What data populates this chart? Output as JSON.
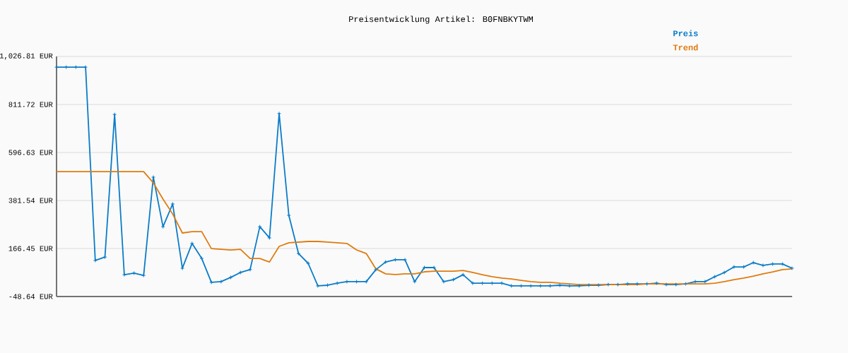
{
  "chart_data": {
    "type": "line",
    "title": "Preisentwicklung Artikel: B0FNBKYTWM",
    "categories": [
      null,
      null,
      null,
      null,
      null,
      null,
      null,
      null,
      null,
      null,
      null,
      null,
      null,
      null,
      null,
      null,
      null,
      null,
      null,
      null,
      null,
      null,
      null,
      null,
      null,
      null,
      null,
      null,
      null,
      null,
      null,
      null,
      null,
      null,
      null,
      null,
      null,
      null,
      null,
      null,
      null,
      null,
      null,
      null,
      null,
      null,
      null,
      null,
      null,
      null,
      null,
      null,
      null,
      null,
      null,
      null,
      null,
      null,
      null,
      null,
      null,
      null,
      null,
      null,
      null,
      null,
      null,
      null,
      null,
      null,
      null,
      null,
      null,
      null,
      null,
      null,
      null
    ],
    "series": [
      {
        "name": "Preis",
        "color": "#0a7cc8",
        "marker": "cross",
        "values": [
          979,
          979,
          979,
          979,
          113,
          128,
          767,
          49,
          56,
          46,
          486,
          264,
          366,
          78,
          189,
          122,
          15,
          18,
          37,
          59,
          72,
          264,
          214,
          771,
          315,
          144,
          100,
          -1,
          2,
          11,
          18,
          18,
          18,
          72,
          106,
          116,
          116,
          18,
          81,
          81,
          18,
          27,
          49,
          11,
          11,
          11,
          11,
          -1,
          -1,
          -1,
          -1,
          -1,
          2,
          -1,
          -1,
          2,
          2,
          5,
          5,
          8,
          8,
          8,
          11,
          5,
          5,
          8,
          18,
          18,
          40,
          59,
          84,
          84,
          103,
          91,
          97,
          97,
          78
        ]
      },
      {
        "name": "Trend",
        "color": "#e07b0e",
        "marker": "none",
        "values": [
          511,
          511,
          511,
          511,
          511,
          511,
          511,
          511,
          511,
          511,
          461,
          388,
          321,
          236,
          242,
          242,
          166,
          163,
          160,
          163,
          122,
          122,
          106,
          176,
          192,
          195,
          198,
          198,
          195,
          192,
          189,
          160,
          144,
          75,
          53,
          50,
          53,
          53,
          62,
          65,
          65,
          65,
          68,
          59,
          49,
          40,
          34,
          30,
          24,
          18,
          15,
          15,
          11,
          8,
          5,
          5,
          5,
          5,
          5,
          5,
          5,
          8,
          8,
          8,
          8,
          8,
          8,
          8,
          11,
          18,
          27,
          34,
          43,
          53,
          62,
          72,
          75
        ]
      }
    ],
    "ylim": [
      -48.64,
      1026.81
    ],
    "yticks": [
      {
        "value": -48.64,
        "label": "-48.64 EUR"
      },
      {
        "value": 166.45,
        "label": "166.45 EUR"
      },
      {
        "value": 381.54,
        "label": "381.54 EUR"
      },
      {
        "value": 596.63,
        "label": "596.63 EUR"
      },
      {
        "value": 811.72,
        "label": "811.72 EUR"
      },
      {
        "value": 1026.81,
        "label": "1,026.81 EUR"
      }
    ],
    "grid": "y",
    "legend": "top right"
  }
}
